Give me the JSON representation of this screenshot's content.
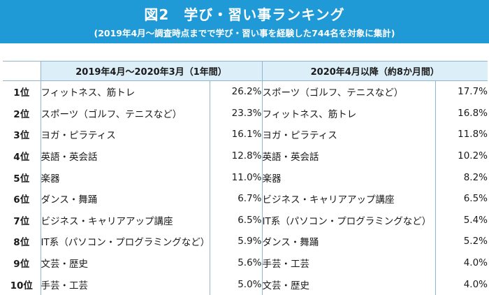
{
  "header": {
    "title": "図2　学び・習い事ランキング",
    "subtitle": "(2019年4月～調査時点までで学び・習い事を経験した744名を対象に集計)"
  },
  "periods": [
    "2019年4月～2020年3月（1年間）",
    "2020年4月以降（約8か月間）"
  ],
  "colors": {
    "banner": "#1f9ad6",
    "period_header": "#dceef8",
    "rule": "#8fb7d2"
  },
  "chart_data": {
    "type": "table",
    "title": "図2　学び・習い事ランキング",
    "columns": [
      "",
      "2019年4月～2020年3月（1年間）",
      "",
      "2020年4月以降（約8か月間）",
      ""
    ],
    "rows": [
      {
        "rank": "1位",
        "item_2019": "フィットネス、筋トレ",
        "pct_2019": "26.2%",
        "item_2020": "スポーツ（ゴルフ、テニスなど）",
        "pct_2020": "17.7%"
      },
      {
        "rank": "2位",
        "item_2019": "スポーツ（ゴルフ、テニスなど）",
        "pct_2019": "23.3%",
        "item_2020": "フィットネス、筋トレ",
        "pct_2020": "16.8%"
      },
      {
        "rank": "3位",
        "item_2019": "ヨガ・ピラティス",
        "pct_2019": "16.1%",
        "item_2020": "ヨガ・ピラティス",
        "pct_2020": "11.8%"
      },
      {
        "rank": "4位",
        "item_2019": "英語・英会話",
        "pct_2019": "12.8%",
        "item_2020": "英語・英会話",
        "pct_2020": "10.2%"
      },
      {
        "rank": "5位",
        "item_2019": "楽器",
        "pct_2019": "11.0%",
        "item_2020": "楽器",
        "pct_2020": "8.2%"
      },
      {
        "rank": "6位",
        "item_2019": "ダンス・舞踊",
        "pct_2019": "6.7%",
        "item_2020": "ビジネス・キャリアアップ講座",
        "pct_2020": "6.5%"
      },
      {
        "rank": "7位",
        "item_2019": "ビジネス・キャリアアップ講座",
        "pct_2019": "6.5%",
        "item_2020": "IT系（パソコン・プログラミングなど）",
        "pct_2020": "5.4%"
      },
      {
        "rank": "8位",
        "item_2019": "IT系（パソコン・プログラミングなど）",
        "pct_2019": "5.9%",
        "item_2020": "ダンス・舞踊",
        "pct_2020": "5.2%"
      },
      {
        "rank": "9位",
        "item_2019": "文芸・歴史",
        "pct_2019": "5.6%",
        "item_2020": "手芸・工芸",
        "pct_2020": "4.0%"
      },
      {
        "rank": "10位",
        "item_2019": "手芸・工芸",
        "pct_2019": "5.0%",
        "item_2020": "文芸・歴史",
        "pct_2020": "4.0%"
      }
    ]
  }
}
